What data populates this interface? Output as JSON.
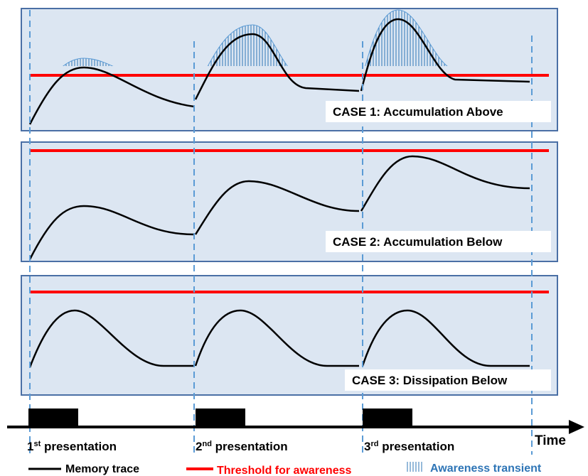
{
  "cases": [
    {
      "label": "CASE 1: Accumulation Above"
    },
    {
      "label": "CASE 2: Accumulation Below"
    },
    {
      "label": "CASE 3: Dissipation Below"
    }
  ],
  "presentations": [
    {
      "ordinal": "1",
      "suffix": "st",
      "text": " presentation"
    },
    {
      "ordinal": "2",
      "suffix": "nd",
      "text": " presentation"
    },
    {
      "ordinal": "3",
      "suffix": "rd",
      "text": " presentation"
    }
  ],
  "axis_label": "Time",
  "legend": [
    {
      "label": "Memory trace"
    },
    {
      "label": "Threshold for awareness"
    },
    {
      "label": "Awareness transient"
    }
  ]
}
